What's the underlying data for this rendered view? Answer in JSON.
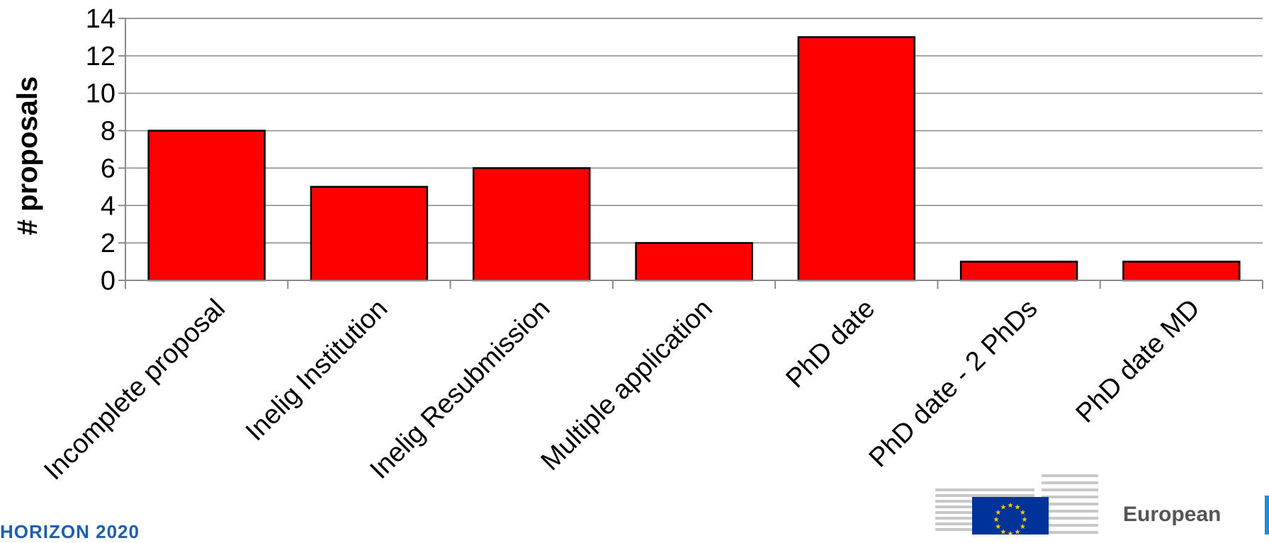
{
  "chart_data": {
    "type": "bar",
    "categories": [
      "Incomplete proposal",
      "Inelig Institution",
      "Inelig Resubmission",
      "Multiple application",
      "PhD date",
      "PhD date - 2 PhDs",
      "PhD date MD"
    ],
    "values": [
      8,
      5,
      6,
      2,
      13,
      1,
      1
    ],
    "ylabel": "# proposals",
    "ylim": [
      0,
      14
    ],
    "yticks": [
      "0",
      "2",
      "4",
      "6",
      "8",
      "10",
      "12",
      "14"
    ],
    "bar_color": "#ff0000",
    "grid": true
  },
  "footer": {
    "program": "HORIZON 2020",
    "brand": "European",
    "brand_color": "#1c5eb0",
    "flag_color": "#003399",
    "star_color": "#ffcc00"
  }
}
